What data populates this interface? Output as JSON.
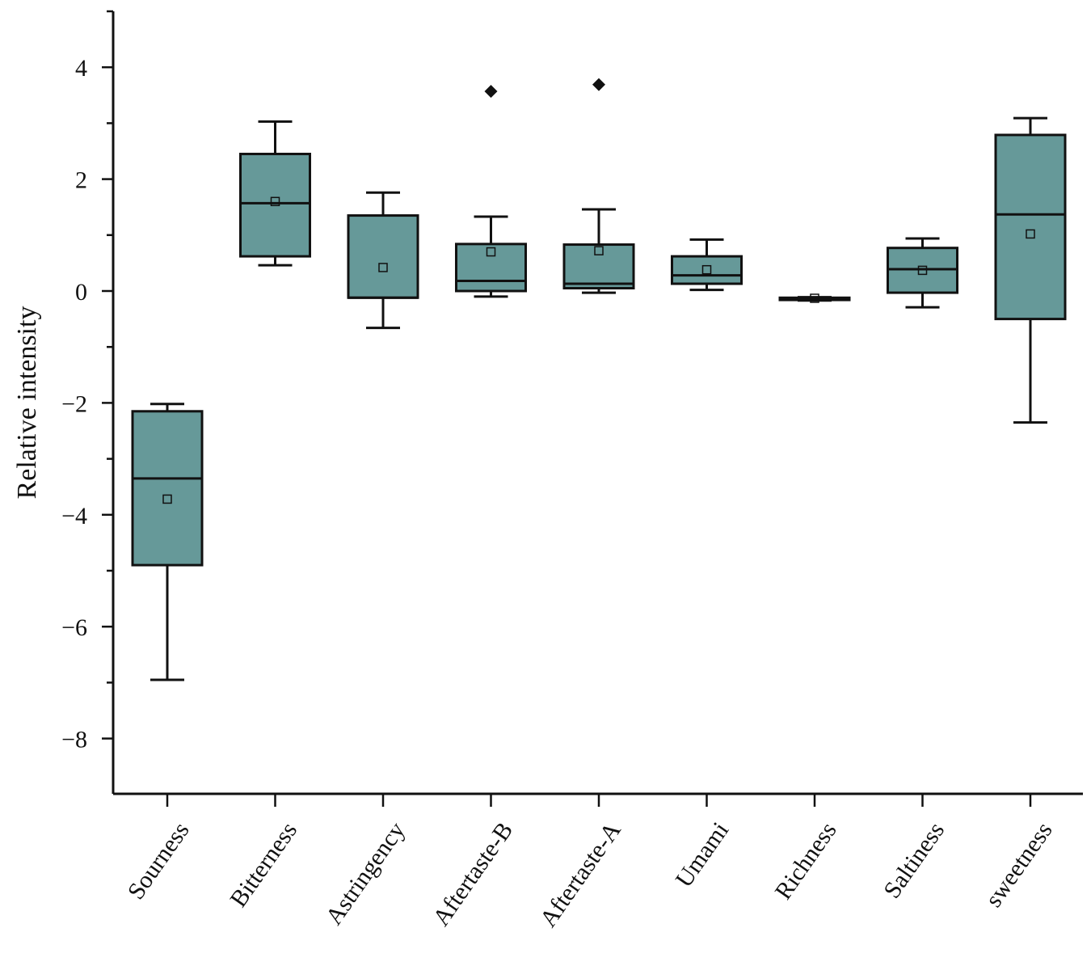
{
  "chart_data": {
    "type": "box",
    "title": "",
    "xlabel": "",
    "ylabel": "Relative intensity",
    "ylim": [
      -9,
      5
    ],
    "y_ticks": [
      4,
      2,
      0,
      -2,
      -4,
      -6,
      -8
    ],
    "y_tick_labels": [
      "4",
      "2",
      "0",
      "−2",
      "−4",
      "−6",
      "−8"
    ],
    "box_color": "#669999",
    "categories": [
      "Sourness",
      "Bitterness",
      "Astringency",
      "Aftertaste-B",
      "Aftertaste-A",
      "Umami",
      "Richness",
      "Saltiness",
      "sweetness"
    ],
    "boxes": [
      {
        "name": "Sourness",
        "whisker_low": -6.95,
        "q1": -4.9,
        "median": -3.35,
        "q3": -2.15,
        "whisker_high": -2.02,
        "mean": -3.72,
        "outliers": []
      },
      {
        "name": "Bitterness",
        "whisker_low": 0.46,
        "q1": 0.62,
        "median": 1.57,
        "q3": 2.45,
        "whisker_high": 3.03,
        "mean": 1.6,
        "outliers": []
      },
      {
        "name": "Astringency",
        "whisker_low": -0.66,
        "q1": -0.12,
        "median": -0.12,
        "q3": 1.35,
        "whisker_high": 1.76,
        "mean": 0.42,
        "outliers": []
      },
      {
        "name": "Aftertaste-B",
        "whisker_low": -0.1,
        "q1": 0.0,
        "median": 0.18,
        "q3": 0.84,
        "whisker_high": 1.33,
        "mean": 0.7,
        "outliers": [
          3.57
        ]
      },
      {
        "name": "Aftertaste-A",
        "whisker_low": -0.03,
        "q1": 0.05,
        "median": 0.13,
        "q3": 0.83,
        "whisker_high": 1.46,
        "mean": 0.72,
        "outliers": [
          3.69
        ]
      },
      {
        "name": "Umami",
        "whisker_low": 0.02,
        "q1": 0.13,
        "median": 0.28,
        "q3": 0.62,
        "whisker_high": 0.92,
        "mean": 0.38,
        "outliers": []
      },
      {
        "name": "Richness",
        "whisker_low": -0.17,
        "q1": -0.16,
        "median": -0.14,
        "q3": -0.12,
        "whisker_high": -0.11,
        "mean": -0.13,
        "outliers": []
      },
      {
        "name": "Saltiness",
        "whisker_low": -0.29,
        "q1": -0.03,
        "median": 0.39,
        "q3": 0.77,
        "whisker_high": 0.94,
        "mean": 0.37,
        "outliers": []
      },
      {
        "name": "sweetness",
        "whisker_low": -2.35,
        "q1": -0.5,
        "median": 1.37,
        "q3": 2.79,
        "whisker_high": 3.09,
        "mean": 1.02,
        "outliers": []
      }
    ]
  }
}
